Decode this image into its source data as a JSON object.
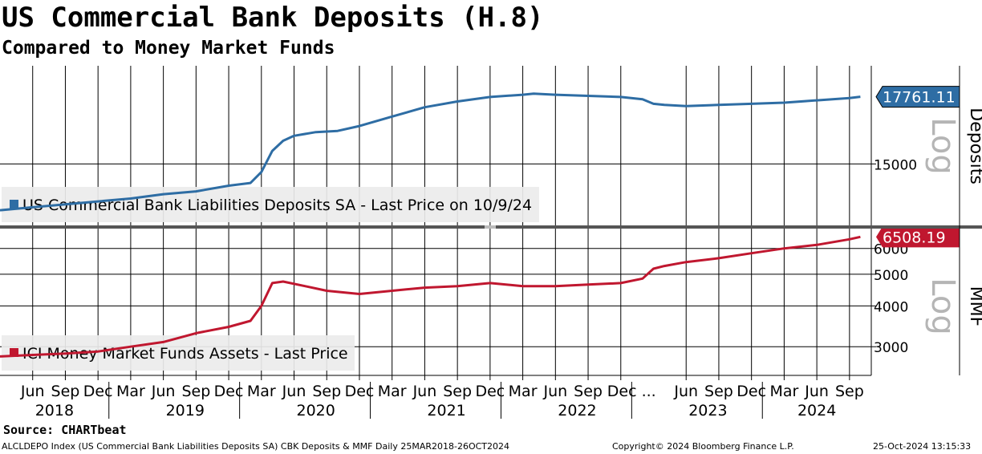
{
  "title": "US Commercial Bank Deposits (H.8)",
  "subtitle": "Compared to Money Market Funds",
  "source": "Source: CHARTbeat",
  "footer": {
    "left": "ALCLDEPO Index (US Commercial Bank Liabilities Deposits SA) CBK Deposits & MMF  Daily 25MAR2018-26OCT2024",
    "center": "Copyright© 2024 Bloomberg Finance L.P.",
    "right": "25-Oct-2024 13:15:33"
  },
  "colors": {
    "deposits": "#2e6da4",
    "mmf": "#c0172f"
  },
  "chart_data": [
    {
      "type": "line",
      "panel": "top",
      "series": [
        {
          "name": "US Commercial Bank Liabilities Deposits SA - Last Price on 10/9/24",
          "x": [
            "2018-03",
            "2018-06",
            "2018-09",
            "2018-12",
            "2019-03",
            "2019-06",
            "2019-09",
            "2019-12",
            "2020-02",
            "2020-03",
            "2020-04",
            "2020-05",
            "2020-06",
            "2020-08",
            "2020-10",
            "2020-12",
            "2021-03",
            "2021-06",
            "2021-09",
            "2021-12",
            "2022-03",
            "2022-04",
            "2022-06",
            "2022-09",
            "2022-12",
            "2023-02",
            "2023-03",
            "2023-04",
            "2023-06",
            "2023-09",
            "2023-12",
            "2024-03",
            "2024-06",
            "2024-09",
            "2024-10"
          ],
          "values": [
            13350,
            13450,
            13550,
            13650,
            13750,
            13900,
            14000,
            14200,
            14300,
            14700,
            15500,
            15900,
            16100,
            16250,
            16300,
            16500,
            16900,
            17300,
            17550,
            17750,
            17850,
            17900,
            17850,
            17800,
            17750,
            17650,
            17450,
            17400,
            17350,
            17400,
            17450,
            17500,
            17600,
            17700,
            17761.11
          ]
        }
      ],
      "last_value_label": "17761.11",
      "yticks": [
        "15000"
      ],
      "ylabel": "Deposits",
      "scale_label": "Log",
      "log_scale": true,
      "ylim": [
        12800,
        19200
      ],
      "legend_position": "bottom-left"
    },
    {
      "type": "line",
      "panel": "bottom",
      "series": [
        {
          "name": "ICI Money Market Funds Assets - Last Price",
          "x": [
            "2018-03",
            "2018-06",
            "2018-09",
            "2018-12",
            "2019-03",
            "2019-06",
            "2019-09",
            "2019-12",
            "2020-02",
            "2020-03",
            "2020-04",
            "2020-05",
            "2020-07",
            "2020-09",
            "2020-12",
            "2021-03",
            "2021-06",
            "2021-09",
            "2021-12",
            "2022-03",
            "2022-06",
            "2022-09",
            "2022-12",
            "2023-02",
            "2023-03",
            "2023-04",
            "2023-06",
            "2023-09",
            "2023-12",
            "2024-03",
            "2024-06",
            "2024-09",
            "2024-10"
          ],
          "values": [
            2800,
            2830,
            2860,
            2900,
            3000,
            3100,
            3300,
            3450,
            3600,
            4000,
            4700,
            4750,
            4600,
            4450,
            4350,
            4450,
            4550,
            4600,
            4700,
            4600,
            4600,
            4650,
            4700,
            4850,
            5200,
            5300,
            5450,
            5600,
            5800,
            6000,
            6150,
            6400,
            6508.19
          ]
        }
      ],
      "last_value_label": "6508.19",
      "yticks": [
        "3000",
        "4000",
        "5000",
        "6000"
      ],
      "ylabel": "MMF",
      "scale_label": "Log",
      "log_scale": true,
      "ylim": [
        2450,
        6900
      ],
      "legend_position": "bottom-left"
    }
  ],
  "x_axis": {
    "range": [
      "2018-03",
      "2024-11"
    ],
    "month_labels": [
      {
        "d": "2018-06",
        "t": "Jun"
      },
      {
        "d": "2018-09",
        "t": "Sep"
      },
      {
        "d": "2018-12",
        "t": "Dec"
      },
      {
        "d": "2019-03",
        "t": "Mar"
      },
      {
        "d": "2019-06",
        "t": "Jun"
      },
      {
        "d": "2019-09",
        "t": "Sep"
      },
      {
        "d": "2019-12",
        "t": "Dec"
      },
      {
        "d": "2020-03",
        "t": "Mar"
      },
      {
        "d": "2020-06",
        "t": "Jun"
      },
      {
        "d": "2020-09",
        "t": "Sep"
      },
      {
        "d": "2020-12",
        "t": "Dec"
      },
      {
        "d": "2021-03",
        "t": "Mar"
      },
      {
        "d": "2021-06",
        "t": "Jun"
      },
      {
        "d": "2021-09",
        "t": "Sep"
      },
      {
        "d": "2021-12",
        "t": "Dec"
      },
      {
        "d": "2022-03",
        "t": "Mar"
      },
      {
        "d": "2022-06",
        "t": "Jun"
      },
      {
        "d": "2022-09",
        "t": "Sep"
      },
      {
        "d": "2022-12",
        "t": "Dec ..."
      },
      {
        "d": "2023-06",
        "t": "Jun"
      },
      {
        "d": "2023-09",
        "t": "Sep"
      },
      {
        "d": "2023-12",
        "t": "Dec"
      },
      {
        "d": "2024-03",
        "t": "Mar"
      },
      {
        "d": "2024-06",
        "t": "Jun"
      },
      {
        "d": "2024-09",
        "t": "Sep"
      }
    ],
    "year_labels": [
      {
        "d": "2018-08",
        "t": "2018"
      },
      {
        "d": "2019-08",
        "t": "2019"
      },
      {
        "d": "2020-08",
        "t": "2020"
      },
      {
        "d": "2021-08",
        "t": "2021"
      },
      {
        "d": "2022-08",
        "t": "2022"
      },
      {
        "d": "2023-08",
        "t": "2023"
      },
      {
        "d": "2024-06",
        "t": "2024"
      }
    ],
    "year_boundaries": [
      "2019-01",
      "2020-01",
      "2021-01",
      "2022-01",
      "2023-01",
      "2024-01"
    ]
  }
}
